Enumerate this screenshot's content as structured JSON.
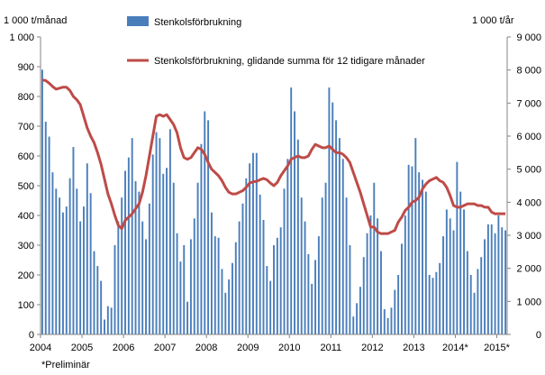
{
  "chart_data": {
    "type": "bar+line",
    "left_axis": {
      "unit_label": "1 000 t/månad",
      "min": 0,
      "max": 1000,
      "ticks": [
        "0",
        "100",
        "200",
        "300",
        "400",
        "500",
        "600",
        "700",
        "800",
        "900",
        "1 000"
      ]
    },
    "right_axis": {
      "unit_label": "1 000 t/år",
      "min": 0,
      "max": 9000,
      "ticks": [
        "0",
        "1 000",
        "2 000",
        "3 000",
        "4 000",
        "5 000",
        "6 000",
        "7 000",
        "8 000",
        "9 000"
      ]
    },
    "x_ticks": [
      "2004",
      "2005",
      "2006",
      "2007",
      "2008",
      "2009",
      "2010",
      "2011",
      "2012",
      "2013",
      "2014*",
      "2015*"
    ],
    "footnote": "*Preliminär",
    "colors": {
      "bars": "#4a7ebb",
      "line": "#be4b48",
      "axis": "#868686"
    },
    "series": [
      {
        "name": "Stenkolsförbrukning",
        "kind": "bar",
        "axis": "left",
        "values": [
          890,
          715,
          665,
          545,
          490,
          460,
          410,
          430,
          525,
          630,
          490,
          380,
          430,
          575,
          475,
          280,
          230,
          180,
          50,
          95,
          90,
          300,
          380,
          460,
          550,
          595,
          660,
          515,
          480,
          380,
          320,
          440,
          605,
          680,
          660,
          540,
          560,
          690,
          510,
          340,
          245,
          300,
          110,
          320,
          390,
          510,
          640,
          750,
          720,
          410,
          330,
          325,
          220,
          140,
          185,
          240,
          310,
          380,
          440,
          525,
          575,
          610,
          610,
          470,
          385,
          230,
          180,
          300,
          325,
          360,
          490,
          590,
          830,
          750,
          655,
          460,
          380,
          270,
          170,
          250,
          330,
          460,
          510,
          830,
          780,
          720,
          660,
          590,
          460,
          300,
          60,
          105,
          160,
          260,
          340,
          400,
          510,
          390,
          280,
          85,
          55,
          90,
          150,
          200,
          305,
          400,
          570,
          565,
          660,
          545,
          520,
          480,
          200,
          190,
          210,
          240,
          330,
          420,
          390,
          350,
          580,
          480,
          420,
          280,
          200,
          140,
          220,
          260,
          320,
          370,
          370,
          340,
          400,
          360,
          350
        ]
      },
      {
        "name": "Stenkolsförbrukning, glidande summa för 12 tidigare månader",
        "kind": "line",
        "axis": "right",
        "values": [
          7700,
          7680,
          7600,
          7500,
          7420,
          7450,
          7480,
          7480,
          7380,
          7200,
          7100,
          6950,
          6600,
          6250,
          6000,
          5800,
          5500,
          5150,
          4700,
          4250,
          3950,
          3600,
          3300,
          3200,
          3450,
          3550,
          3650,
          3800,
          3950,
          4300,
          4800,
          5400,
          6000,
          6600,
          6650,
          6600,
          6650,
          6500,
          6350,
          6100,
          5650,
          5350,
          5300,
          5350,
          5500,
          5650,
          5600,
          5450,
          5200,
          5000,
          4900,
          4800,
          4650,
          4450,
          4300,
          4250,
          4250,
          4300,
          4350,
          4450,
          4580,
          4620,
          4630,
          4680,
          4720,
          4680,
          4580,
          4500,
          4600,
          4800,
          4950,
          5100,
          5300,
          5350,
          5400,
          5350,
          5350,
          5400,
          5600,
          5750,
          5700,
          5650,
          5650,
          5700,
          5600,
          5500,
          5500,
          5450,
          5350,
          5200,
          4900,
          4600,
          4300,
          3950,
          3600,
          3250,
          3250,
          3100,
          3050,
          3050,
          3050,
          3100,
          3150,
          3400,
          3550,
          3750,
          3850,
          4000,
          4050,
          4150,
          4400,
          4550,
          4650,
          4700,
          4750,
          4650,
          4600,
          4450,
          4200,
          3900,
          3850,
          3850,
          3900,
          3950,
          3950,
          3950,
          3900,
          3900,
          3850,
          3850,
          3700,
          3650,
          3650,
          3650,
          3650
        ]
      }
    ],
    "legend_placement": "top-center",
    "grid": false
  }
}
